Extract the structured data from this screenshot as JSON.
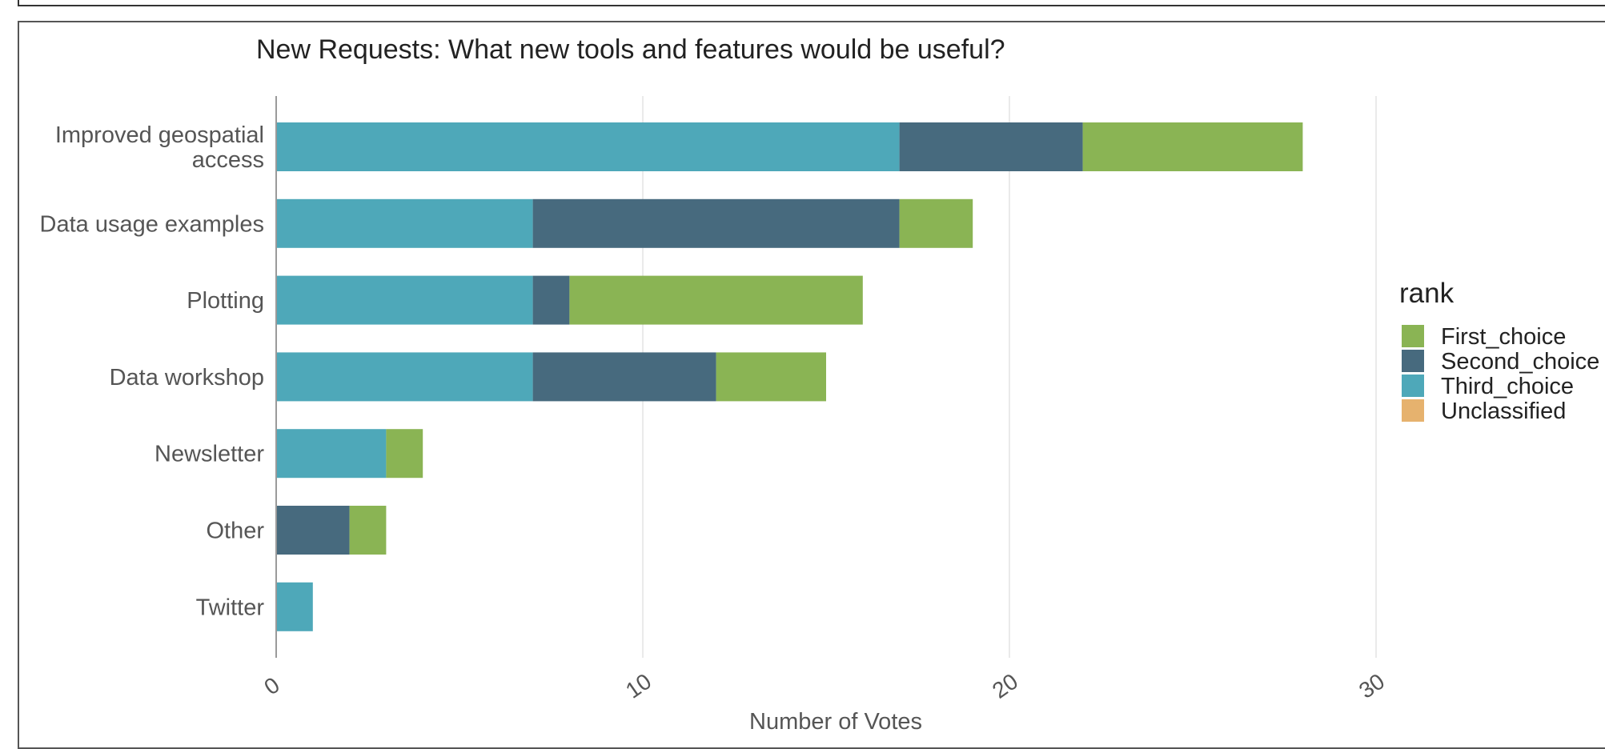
{
  "chart_data": {
    "type": "bar",
    "orientation": "horizontal",
    "stacked": true,
    "title": "New Requests: What new tools and features would be useful?",
    "xlabel": "Number of Votes",
    "ylabel": "",
    "xlim": [
      0,
      35
    ],
    "x_ticks": [
      0,
      10,
      20,
      30
    ],
    "x_tick_labels": [
      "0",
      "10",
      "20",
      "30"
    ],
    "grid": true,
    "categories": [
      "Improved geospatial access",
      "Data usage examples",
      "Plotting",
      "Data workshop",
      "Newsletter",
      "Other",
      "Twitter"
    ],
    "category_lines": [
      [
        "Improved geospatial",
        "access"
      ],
      [
        "Data usage examples"
      ],
      [
        "Plotting"
      ],
      [
        "Data workshop"
      ],
      [
        "Newsletter"
      ],
      [
        "Other"
      ],
      [
        "Twitter"
      ]
    ],
    "series": [
      {
        "name": "Third_choice",
        "color": "#4ea8b9",
        "values": [
          17,
          7,
          7,
          7,
          3,
          0,
          1
        ]
      },
      {
        "name": "Second_choice",
        "color": "#476a7e",
        "values": [
          5,
          10,
          1,
          5,
          0,
          2,
          0
        ]
      },
      {
        "name": "First_choice",
        "color": "#8ab454",
        "values": [
          6,
          2,
          8,
          3,
          1,
          1,
          0
        ]
      },
      {
        "name": "Unclassified",
        "color": "#e6b26e",
        "values": [
          0,
          0,
          0,
          0,
          0,
          0,
          0
        ]
      }
    ],
    "legend": {
      "title": "rank",
      "placement": "right",
      "entries": [
        {
          "label": "First_choice",
          "color": "#8ab454"
        },
        {
          "label": "Second_choice",
          "color": "#476a7e"
        },
        {
          "label": "Third_choice",
          "color": "#4ea8b9"
        },
        {
          "label": "Unclassified",
          "color": "#e6b26e"
        }
      ]
    }
  }
}
